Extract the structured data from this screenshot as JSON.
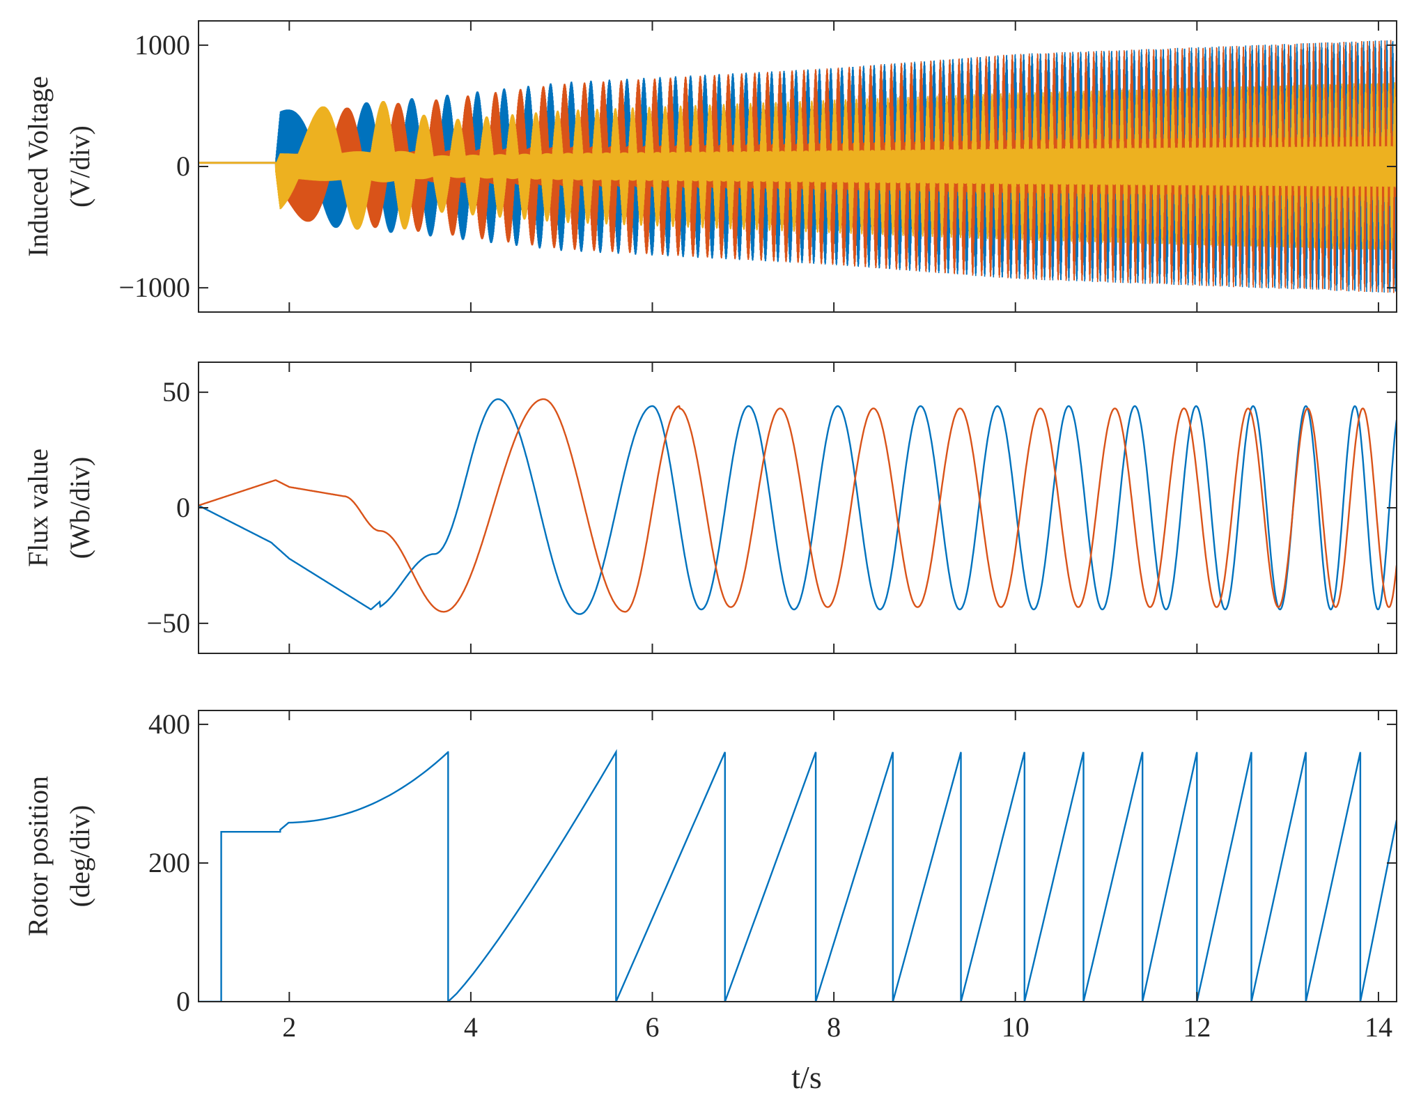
{
  "colors": {
    "blue": "#0072BD",
    "orange": "#D95319",
    "yellow": "#EDB120",
    "axis": "#262626"
  },
  "chart_data": [
    {
      "type": "line",
      "ylabel_line1": "Induced Voltage",
      "ylabel_line2": "(V/div)",
      "xlim": [
        1,
        14.2
      ],
      "ylim": [
        -1200,
        1200
      ],
      "xticks": [
        2,
        4,
        6,
        8,
        10,
        12,
        14
      ],
      "yticks": [
        -1000,
        0,
        1000
      ],
      "ytick_labels": [
        "−1000",
        "0",
        "1000"
      ],
      "show_xtick_labels": false,
      "series": [
        {
          "color": "blue",
          "envelope": [
            [
              1.0,
              20
            ],
            [
              1.85,
              40
            ],
            [
              1.9,
              320
            ],
            [
              3.6,
              400
            ],
            [
              5.0,
              480
            ],
            [
              8.0,
              560
            ],
            [
              10.0,
              640
            ],
            [
              14.2,
              720
            ]
          ]
        },
        {
          "color": "orange",
          "envelope": [
            [
              1.0,
              20
            ],
            [
              1.85,
              40
            ],
            [
              1.9,
              300
            ],
            [
              3.6,
              380
            ],
            [
              5.0,
              470
            ],
            [
              8.0,
              560
            ],
            [
              10.0,
              640
            ],
            [
              14.2,
              720
            ]
          ]
        },
        {
          "color": "yellow",
          "envelope": [
            [
              1.0,
              20
            ],
            [
              1.85,
              40
            ],
            [
              1.9,
              320
            ],
            [
              3.2,
              380
            ],
            [
              3.6,
              260
            ],
            [
              5.0,
              320
            ],
            [
              8.0,
              380
            ],
            [
              10.0,
              420
            ],
            [
              14.2,
              480
            ]
          ]
        }
      ]
    },
    {
      "type": "line",
      "ylabel_line1": "Flux value",
      "ylabel_line2": "(Wb/div)",
      "xlim": [
        1,
        14.2
      ],
      "ylim": [
        -63,
        63
      ],
      "xticks": [
        2,
        4,
        6,
        8,
        10,
        12,
        14
      ],
      "yticks": [
        -50,
        0,
        50
      ],
      "ytick_labels": [
        "−50",
        "0",
        "50"
      ],
      "show_xtick_labels": false,
      "series": [
        {
          "color": "blue",
          "points": [
            [
              1.0,
              1
            ],
            [
              1.8,
              -15
            ],
            [
              2.0,
              -22
            ],
            [
              2.9,
              -44
            ],
            [
              3.6,
              -20
            ],
            [
              4.3,
              47
            ],
            [
              5.2,
              -46
            ],
            [
              6.0,
              44
            ]
          ]
        },
        {
          "color": "orange",
          "points": [
            [
              1.0,
              1
            ],
            [
              1.85,
              12
            ],
            [
              2.0,
              9
            ],
            [
              2.6,
              5
            ],
            [
              3.0,
              -10
            ],
            [
              3.7,
              -45
            ],
            [
              4.8,
              47
            ],
            [
              5.7,
              -45
            ],
            [
              6.3,
              44
            ]
          ]
        }
      ]
    },
    {
      "type": "line",
      "ylabel_line1": "Rotor position",
      "ylabel_line2": "(deg/div)",
      "xlim": [
        1,
        14.2
      ],
      "ylim": [
        0,
        420
      ],
      "xticks": [
        2,
        4,
        6,
        8,
        10,
        12,
        14
      ],
      "xtick_labels": [
        "2",
        "4",
        "6",
        "8",
        "10",
        "12",
        "14"
      ],
      "yticks": [
        0,
        200,
        400
      ],
      "ytick_labels": [
        "0",
        "200",
        "400"
      ],
      "show_xtick_labels": true,
      "xlabel": "t/s",
      "series": [
        {
          "color": "blue",
          "reset_times": [
            3.75,
            5.6,
            6.8,
            7.8,
            8.65,
            9.4,
            10.1,
            10.75,
            11.4,
            12.0,
            12.6,
            13.2,
            13.8
          ]
        }
      ]
    }
  ]
}
